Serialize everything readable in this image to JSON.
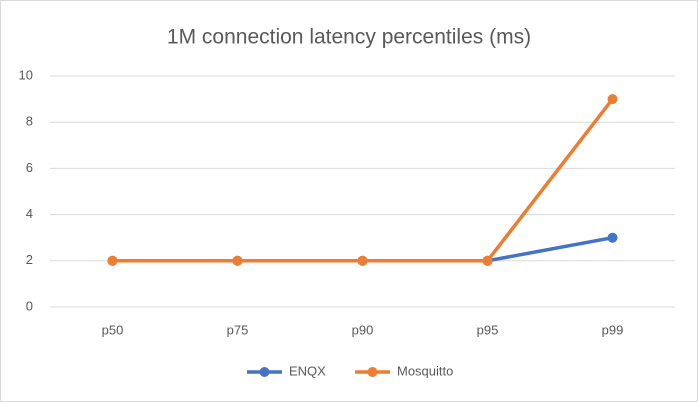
{
  "chart_data": {
    "type": "line",
    "title": "1M connection latency percentiles (ms)",
    "categories": [
      "p50",
      "p75",
      "p90",
      "p95",
      "p99"
    ],
    "series": [
      {
        "name": "ENQX",
        "color": "#4472c4",
        "values": [
          2,
          2,
          2,
          2,
          3
        ]
      },
      {
        "name": "Mosquitto",
        "color": "#ed7d31",
        "values": [
          2,
          2,
          2,
          2,
          9
        ]
      }
    ],
    "ylim": [
      0,
      10
    ],
    "yticks": [
      0,
      2,
      4,
      6,
      8,
      10
    ],
    "grid": true,
    "legend": "bottom"
  }
}
